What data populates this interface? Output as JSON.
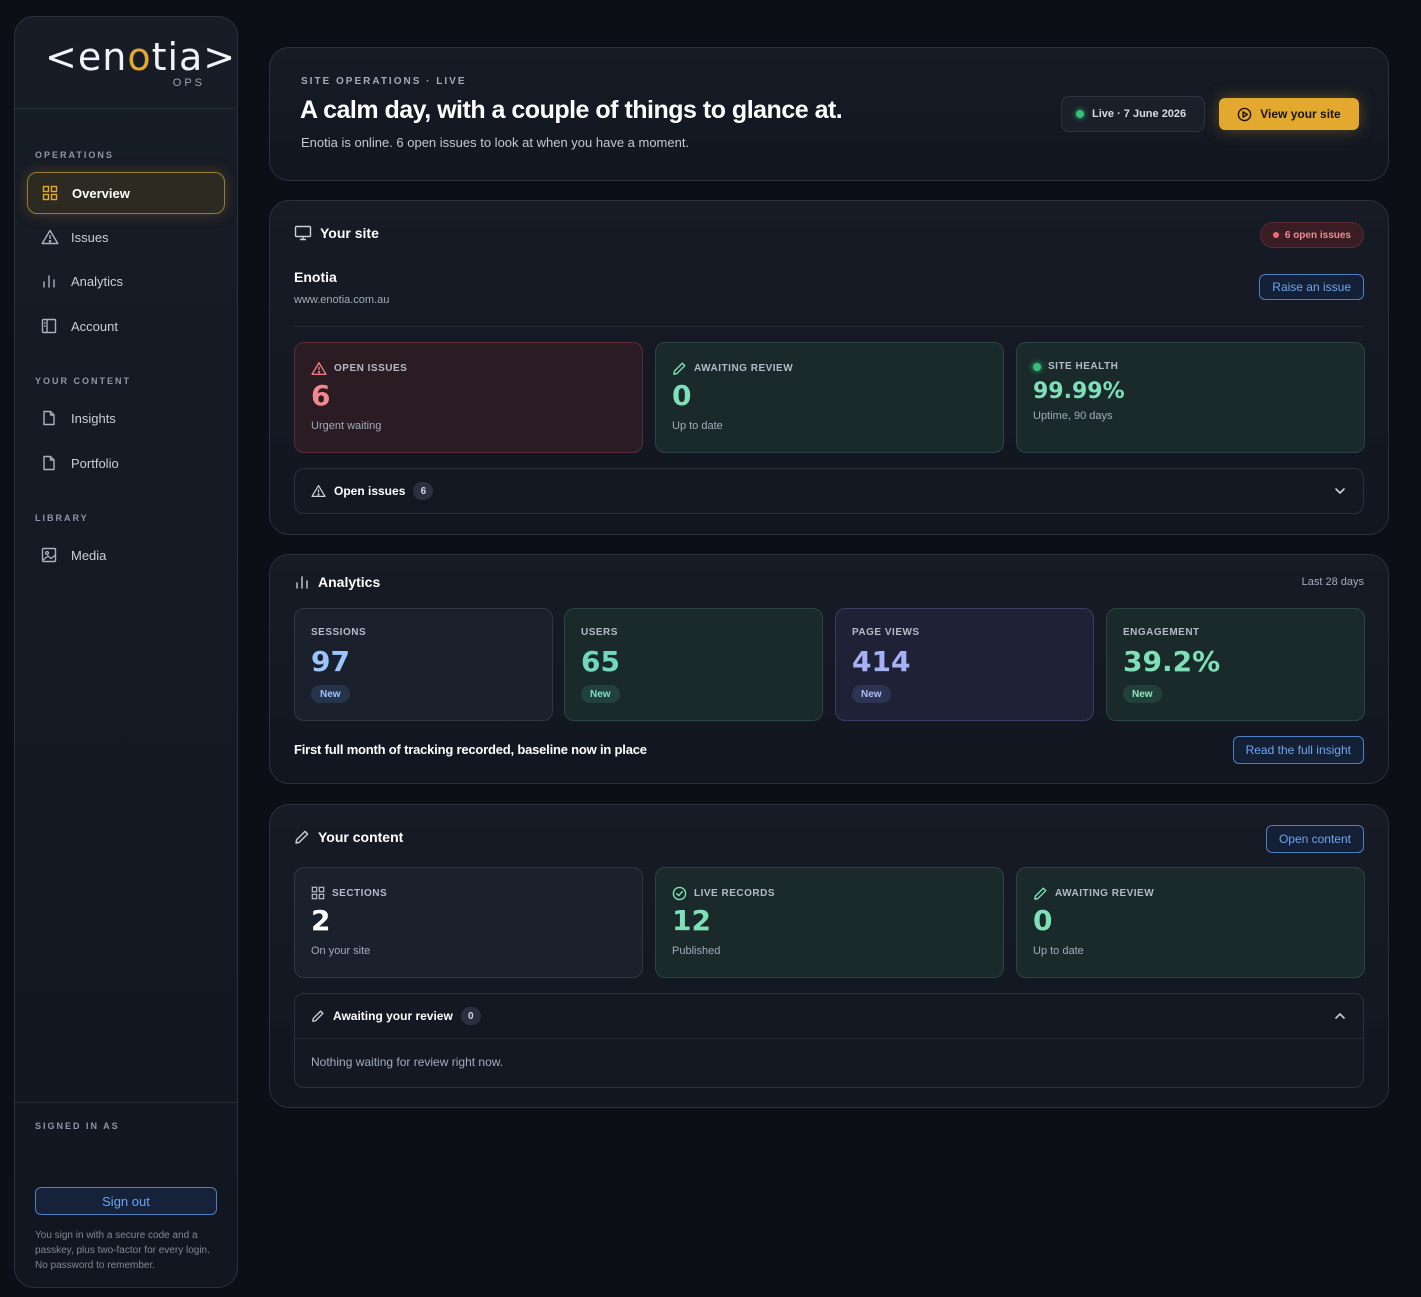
{
  "sidebar": {
    "logo_left": "<en",
    "logo_o": "o",
    "logo_right": "tia>",
    "logo_sub": "OPS",
    "sections": {
      "operations": "OPERATIONS",
      "content": "YOUR CONTENT",
      "library": "LIBRARY"
    },
    "items": [
      {
        "label": "Overview",
        "icon": "grid-icon"
      },
      {
        "label": "Issues",
        "icon": "warning-icon"
      },
      {
        "label": "Analytics",
        "icon": "bar-chart-icon"
      },
      {
        "label": "Account",
        "icon": "account-panel-icon"
      },
      {
        "label": "Insights",
        "icon": "document-icon"
      },
      {
        "label": "Portfolio",
        "icon": "document-icon"
      },
      {
        "label": "Media",
        "icon": "image-icon"
      }
    ],
    "signed_in_label": "SIGNED IN AS",
    "sign_out": "Sign out",
    "sign_note": "You sign in with a secure code and a passkey, plus two-factor for every login. No password to remember."
  },
  "hero": {
    "eyebrow": "SITE OPERATIONS · LIVE",
    "title": "A calm day, with a couple of things to glance at.",
    "subtitle": "Enotia is online. 6 open issues to look at when you have a moment.",
    "live_status": "Live · 7 June 2026",
    "view_site": "View your site"
  },
  "site": {
    "heading": "Your site",
    "open_badge": "6 open issues",
    "name": "Enotia",
    "url": "www.enotia.com.au",
    "raise_issue": "Raise an issue",
    "stats": [
      {
        "label": "OPEN ISSUES",
        "value": "6",
        "sub": "Urgent waiting"
      },
      {
        "label": "AWAITING REVIEW",
        "value": "0",
        "sub": "Up to date"
      },
      {
        "label": "SITE HEALTH",
        "value": "99.99%",
        "sub": "Uptime, 90 days"
      }
    ],
    "accordion": {
      "label": "Open issues",
      "count": "6"
    }
  },
  "analytics": {
    "heading": "Analytics",
    "period": "Last 28 days",
    "stats": [
      {
        "label": "SESSIONS",
        "value": "97",
        "tag": "New"
      },
      {
        "label": "USERS",
        "value": "65",
        "tag": "New"
      },
      {
        "label": "PAGE VIEWS",
        "value": "414",
        "tag": "New"
      },
      {
        "label": "ENGAGEMENT",
        "value": "39.2%",
        "tag": "New"
      }
    ],
    "insight": "First full month of tracking recorded, baseline now in place",
    "read_insight": "Read the full insight"
  },
  "content": {
    "heading": "Your content",
    "open_content": "Open content",
    "stats": [
      {
        "label": "SECTIONS",
        "value": "2",
        "sub": "On your site"
      },
      {
        "label": "LIVE RECORDS",
        "value": "12",
        "sub": "Published"
      },
      {
        "label": "AWAITING REVIEW",
        "value": "0",
        "sub": "Up to date"
      }
    ],
    "accordion": {
      "label": "Awaiting your review",
      "count": "0",
      "empty": "Nothing waiting for review right now."
    }
  },
  "colors": {
    "accent": "#e3a92f",
    "link": "#6fa5ef",
    "danger": "#f06a74",
    "success": "#35c07a",
    "mint": "#7fe0b8",
    "indigo": "#a6b0f5",
    "sky": "#9cc4ff"
  }
}
